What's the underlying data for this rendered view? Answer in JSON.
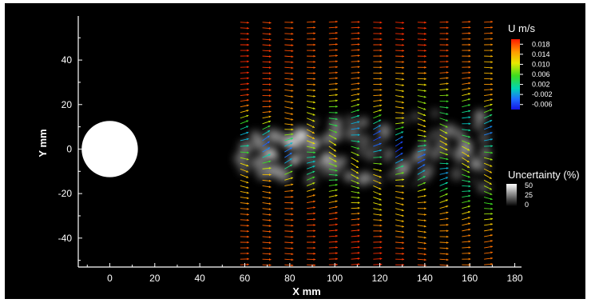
{
  "chart_data": {
    "type": "vector-field",
    "xlabel": "X mm",
    "ylabel": "Y mm",
    "xlim": [
      -14,
      183
    ],
    "ylim": [
      -53,
      58
    ],
    "x_ticks": [
      0,
      20,
      40,
      60,
      80,
      100,
      120,
      140,
      160,
      180
    ],
    "y_ticks": [
      -40,
      -20,
      0,
      20,
      40
    ],
    "cylinder": {
      "center_x": 0,
      "center_y": 0,
      "diameter": 25
    },
    "vector_field_extent": {
      "x": [
        58,
        168
      ],
      "y": [
        -52,
        57
      ]
    },
    "velocity_colorbar": {
      "title": "U m/s",
      "ticks": [
        0.018,
        0.014,
        0.01,
        0.006,
        0.002,
        -0.002,
        -0.006
      ],
      "tick_labels": [
        "0.018",
        "0.014",
        "0.010",
        "0.006",
        "0.002",
        "-0.002",
        "-0.006"
      ],
      "range": [
        -0.008,
        0.02
      ]
    },
    "uncertainty_colorbar": {
      "title": "Uncertainty (%)",
      "tick_labels": [
        "50",
        "25",
        "0"
      ],
      "range": [
        0,
        50
      ]
    },
    "colors": {
      "background": "#000000",
      "frame": "#ffffff",
      "cylinder": "#ffffff"
    }
  }
}
